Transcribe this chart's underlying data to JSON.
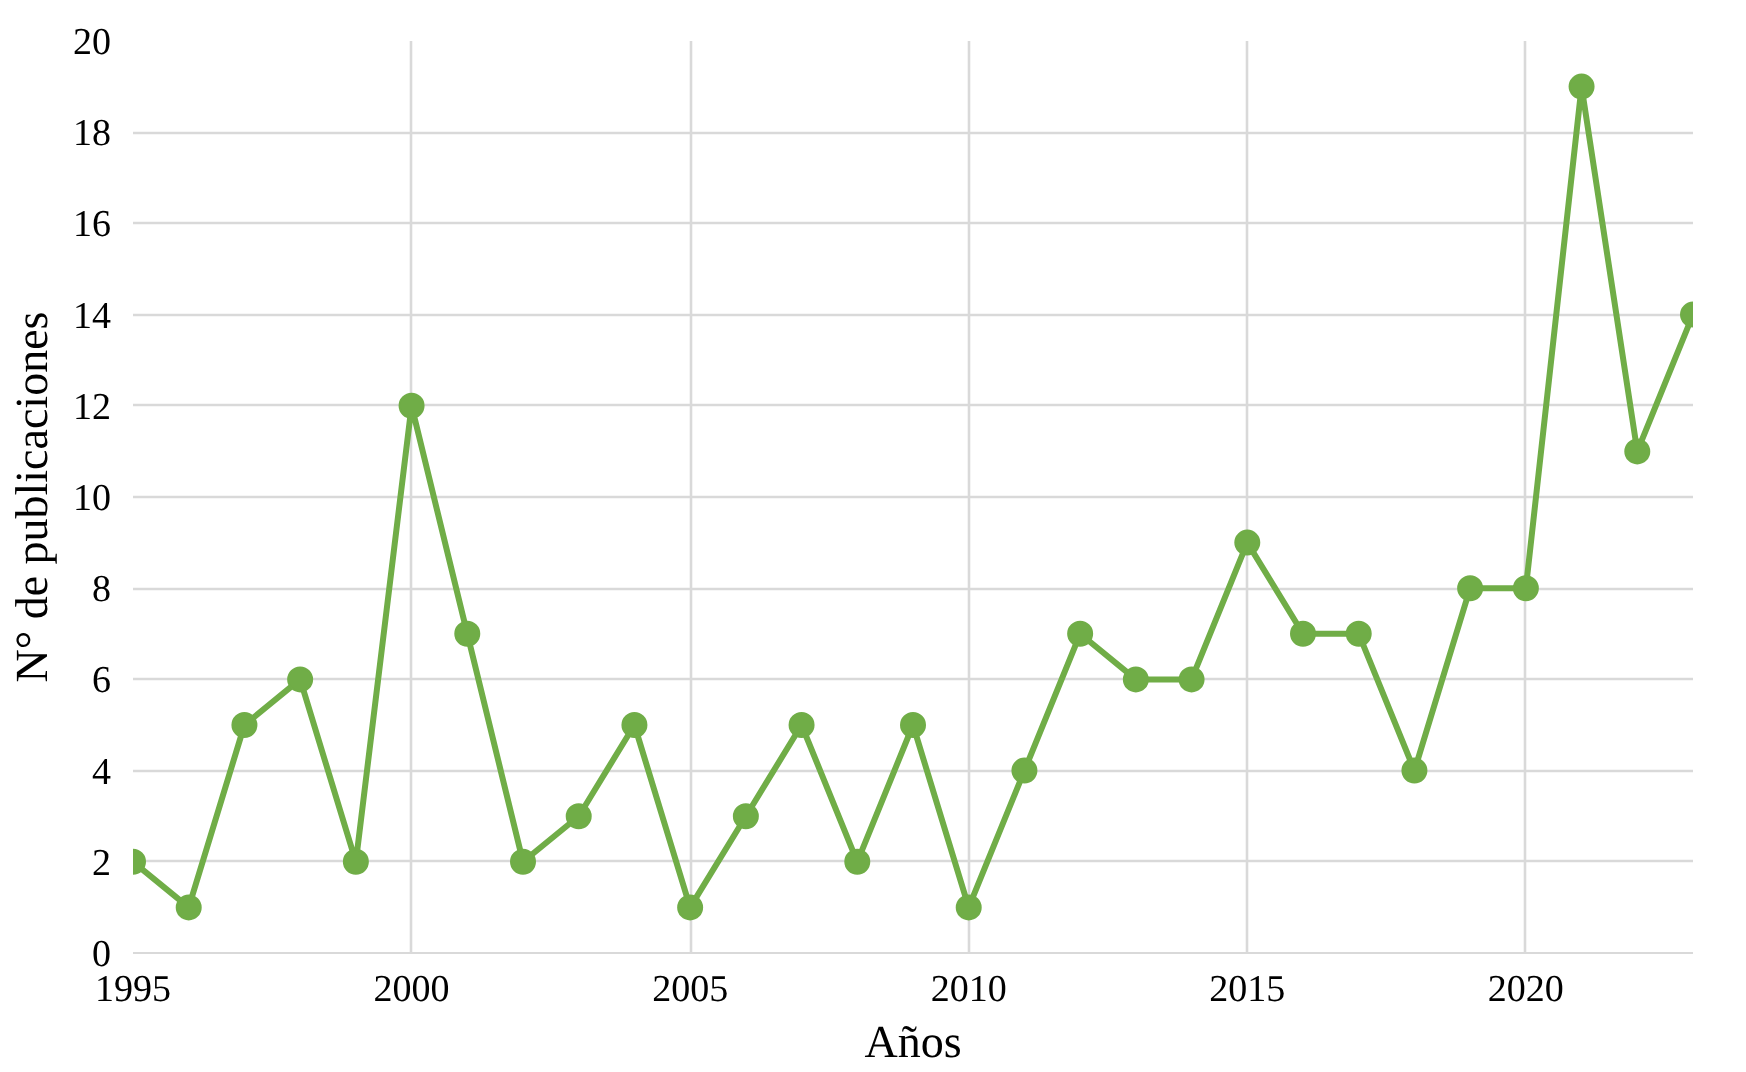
{
  "chart_data": {
    "type": "line",
    "xlabel": "Años",
    "ylabel": "N° de publicaciones",
    "x": [
      1995,
      1996,
      1997,
      1998,
      1999,
      2000,
      2001,
      2002,
      2003,
      2004,
      2005,
      2006,
      2007,
      2008,
      2009,
      2010,
      2011,
      2012,
      2013,
      2014,
      2015,
      2016,
      2017,
      2018,
      2019,
      2020,
      2021,
      2022,
      2023
    ],
    "series": [
      {
        "color": "#70ad47",
        "values": [
          2,
          1,
          5,
          6,
          2,
          12,
          7,
          2,
          3,
          5,
          1,
          3,
          5,
          2,
          5,
          1,
          4,
          7,
          6,
          6,
          9,
          7,
          7,
          4,
          8,
          8,
          19,
          11,
          14
        ]
      }
    ],
    "xlim": [
      1995,
      2023
    ],
    "ylim": [
      0,
      20
    ],
    "xticks": [
      1995,
      2000,
      2005,
      2010,
      2015,
      2020
    ],
    "yticks": [
      0,
      2,
      4,
      6,
      8,
      10,
      12,
      14,
      16,
      18,
      20
    ],
    "grid": true,
    "marker": "circle",
    "line_style": "solid"
  }
}
